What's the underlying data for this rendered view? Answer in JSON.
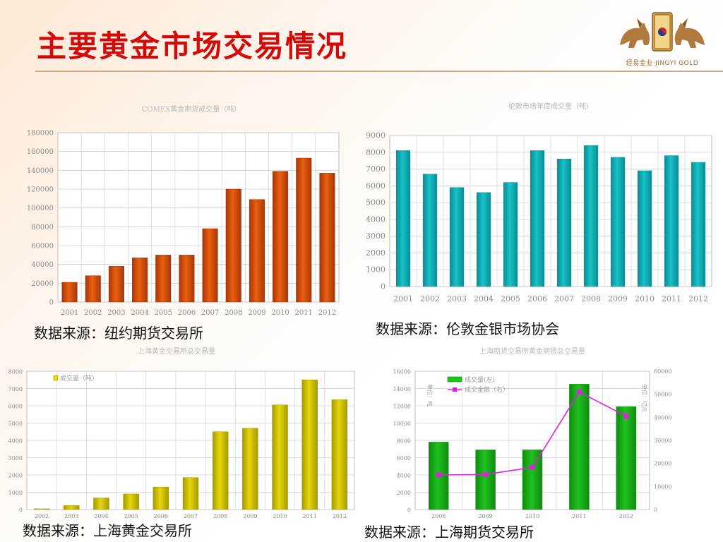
{
  "slide": {
    "title": "主要黄金市场交易情况",
    "logo_text": "经易金业·JINGYI GOLD",
    "logo_seal_text": "經易"
  },
  "sources": [
    "数据来源：纽约期货交易所",
    "数据来源：伦敦金银市场协会",
    "数据来源：上海黄金交易所",
    "数据来源：上海期货交易所"
  ],
  "colors": {
    "comex": "#e9600c",
    "london": "#16c2c8",
    "sge": "#e7d60a",
    "shfe_bar": "#1fc21f",
    "shfe_line": "#e020e0",
    "title": "#d20a0a"
  },
  "chart_data": [
    {
      "type": "bar",
      "title": "COMEX黄金期货成交量（吨）",
      "categories": [
        "2001",
        "2002",
        "2003",
        "2004",
        "2005",
        "2006",
        "2007",
        "2008",
        "2009",
        "2010",
        "2011",
        "2012"
      ],
      "values": [
        21000,
        28000,
        38000,
        47000,
        50000,
        50000,
        78000,
        120000,
        109000,
        139000,
        153000,
        137000
      ],
      "ylim": [
        0,
        180000
      ],
      "yticks": [
        "0",
        "20000",
        "40000",
        "60000",
        "80000",
        "100000",
        "120000",
        "140000",
        "160000",
        "180000"
      ],
      "grid": true
    },
    {
      "type": "bar",
      "title": "伦敦市场年度成交量（吨）",
      "categories": [
        "2001",
        "2002",
        "2003",
        "2004",
        "2005",
        "2006",
        "2007",
        "2008",
        "2009",
        "2010",
        "2011",
        "2012"
      ],
      "values": [
        8100,
        6700,
        5900,
        5600,
        6200,
        8100,
        7600,
        8400,
        7700,
        6900,
        7800,
        7400
      ],
      "ylim": [
        0,
        9000
      ],
      "yticks": [
        "0",
        "1000",
        "2000",
        "3000",
        "4000",
        "5000",
        "6000",
        "7000",
        "8000",
        "9000"
      ],
      "grid": true
    },
    {
      "type": "bar",
      "title": "上海黄金交易所总交易量",
      "categories": [
        "2002",
        "2003",
        "2004",
        "2005",
        "2006",
        "2007",
        "2008",
        "2009",
        "2010",
        "2011",
        "2012"
      ],
      "values": [
        45,
        230,
        670,
        900,
        1300,
        1850,
        4500,
        4700,
        6050,
        7500,
        6350
      ],
      "ylim": [
        0,
        8000
      ],
      "yticks": [
        "0",
        "1000",
        "2000",
        "3000",
        "4000",
        "5000",
        "6000",
        "7000",
        "8000"
      ],
      "legend": "成交量（吨）",
      "legend_position": "top-left",
      "grid": true
    },
    {
      "type": "bar",
      "title": "上海期货交易所黄金期货总交易量",
      "categories": [
        "2008",
        "2009",
        "2010",
        "2011",
        "2012"
      ],
      "series": [
        {
          "name": "成交量(左)",
          "type": "bar",
          "values": [
            7800,
            6900,
            6900,
            14500,
            11900
          ]
        },
        {
          "name": "成交金额（右）",
          "type": "line",
          "axis": "right",
          "values": [
            15000,
            15200,
            18300,
            51000,
            40500
          ]
        }
      ],
      "ylim": [
        0,
        16000
      ],
      "y2lim": [
        0,
        60000
      ],
      "yticks": [
        "0",
        "2000",
        "4000",
        "6000",
        "8000",
        "10000",
        "12000",
        "14000",
        "16000"
      ],
      "y2ticks": [
        "0",
        "10000",
        "20000",
        "30000",
        "40000",
        "50000",
        "60000"
      ],
      "ylabel": "单位：吨",
      "y2label": "单位：亿元",
      "legend_position": "top-left",
      "grid": true
    }
  ]
}
